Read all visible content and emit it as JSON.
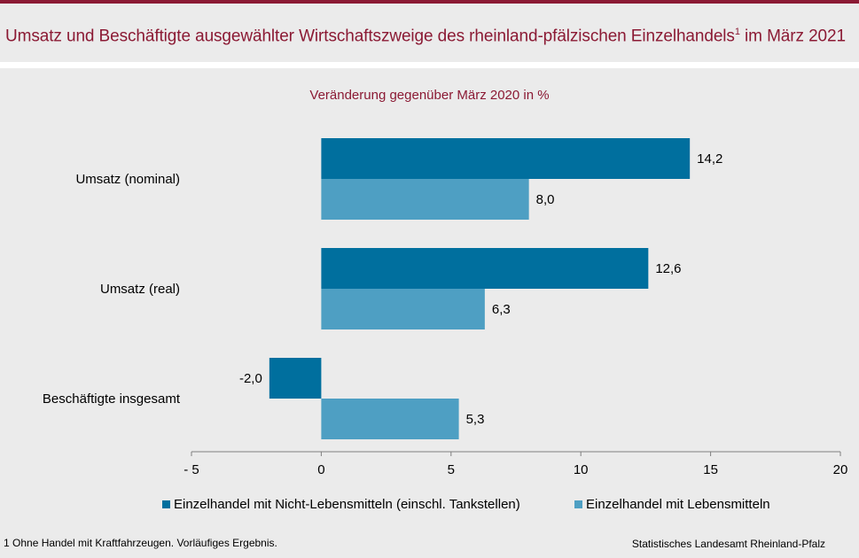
{
  "header": {
    "title": "Umsatz und Beschäftigte ausgewählter Wirtschaftszweige des rheinland-pfälzischen Einzelhandels",
    "title_sup": "1",
    "title_suffix": " im März 2021"
  },
  "chart_data": {
    "type": "bar",
    "orientation": "horizontal",
    "subtitle": "Veränderung gegenüber März 2020 in %",
    "categories": [
      "Umsatz (nominal)",
      "Umsatz (real)",
      "Beschäftigte insgesamt"
    ],
    "series": [
      {
        "name": "Einzelhandel mit Nicht-Lebensmitteln (einschl. Tankstellen)",
        "color": "#006f9e",
        "values": [
          14.2,
          12.6,
          -2.0
        ],
        "labels": [
          "14,2",
          "12,6",
          "-2,0"
        ]
      },
      {
        "name": "Einzelhandel mit Lebensmitteln",
        "color": "#4e9fc3",
        "values": [
          8.0,
          6.3,
          5.3
        ],
        "labels": [
          "8,0",
          "6,3",
          "5,3"
        ]
      }
    ],
    "xlim": [
      -5,
      20
    ],
    "xticks": [
      -5,
      0,
      5,
      10,
      15,
      20
    ],
    "xtick_labels": [
      "- 5",
      "0",
      "5",
      "10",
      "15",
      "20"
    ],
    "legend_position": "bottom"
  },
  "footnote": "1 Ohne Handel  mit Kraftfahrzeugen.  Vorläufiges  Ergebnis.",
  "source": "Statistisches Landesamt Rheinland-Pfalz"
}
